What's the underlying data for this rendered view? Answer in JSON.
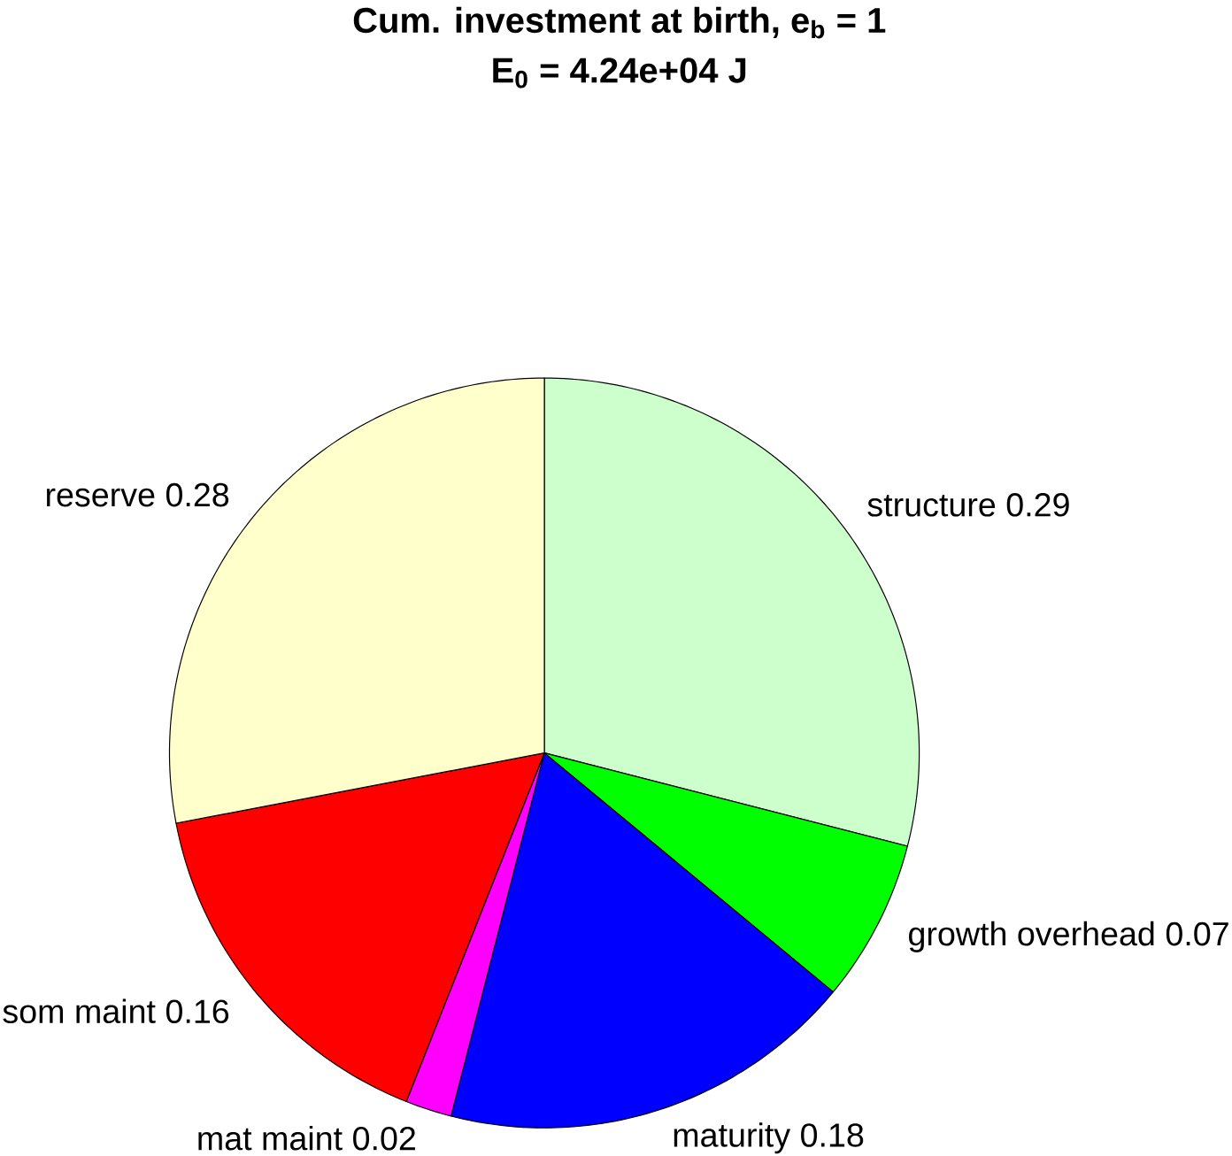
{
  "chart_data": {
    "type": "pie",
    "title": "Cum. investment at birth, e$_{b}$ = 1",
    "subtitle": "E$_{0}$ = 4.24e+04 J",
    "categories": [
      "structure",
      "growth overhead",
      "maturity",
      "mat maint",
      "som maint",
      "reserve"
    ],
    "values": [
      0.29,
      0.07,
      0.18,
      0.02,
      0.16,
      0.28
    ],
    "colors": [
      "#ccffcc",
      "#00ff00",
      "#0000ff",
      "#ff00ff",
      "#ff0000",
      "#ffffcc"
    ],
    "data_labels": true
  }
}
